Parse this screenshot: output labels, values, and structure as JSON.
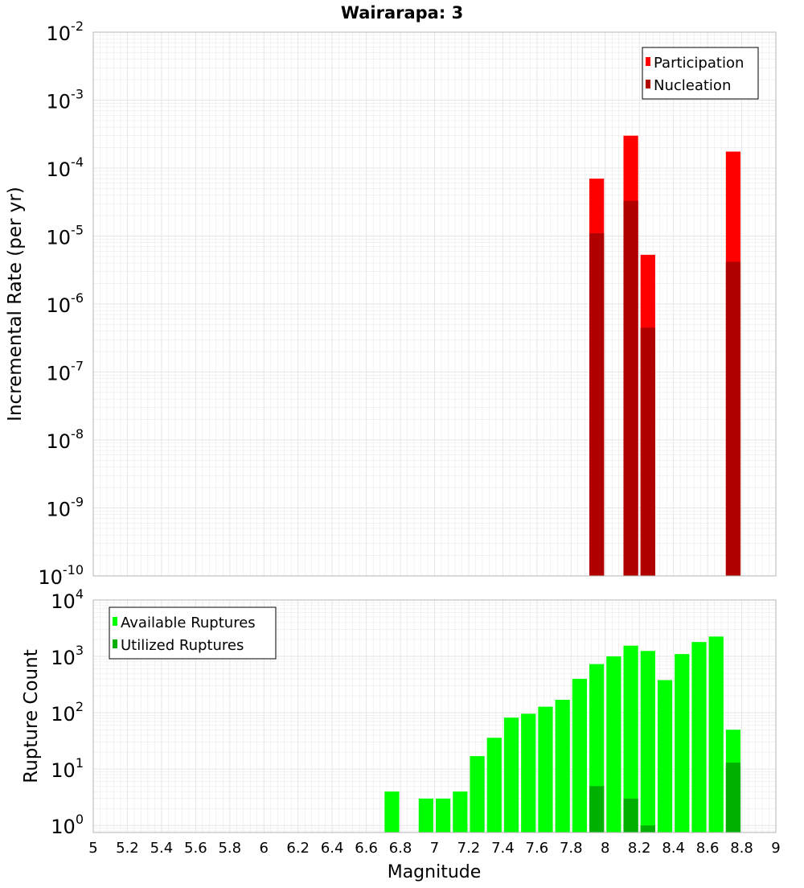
{
  "colors": {
    "participation": "#ff0000",
    "nucleation": "#b00000",
    "available": "#00ff00",
    "utilized": "#00b000",
    "grid": "#e6e6e6",
    "frame": "#b4b4b4"
  },
  "chart_data": [
    {
      "id": "rate",
      "type": "bar",
      "title": "Wairarapa: 3",
      "xlabel": "",
      "ylabel": "Incremental Rate (per yr)",
      "yscale": "log",
      "ylim": [
        1e-10,
        0.01
      ],
      "xlim": [
        5,
        9
      ],
      "grid": true,
      "legend_position": "top-right",
      "x": [
        7.95,
        8.15,
        8.25,
        8.75
      ],
      "bar_width": 0.1,
      "series": [
        {
          "name": "Participation",
          "color_key": "participation",
          "values": [
            7e-05,
            0.0003,
            5.3e-06,
            0.000175
          ]
        },
        {
          "name": "Nucleation",
          "color_key": "nucleation",
          "values": [
            1.1e-05,
            3.3e-05,
            4.5e-07,
            4.2e-06
          ]
        }
      ],
      "y_ticks": [
        {
          "base": "10",
          "exp": "-10"
        },
        {
          "base": "10",
          "exp": "-9"
        },
        {
          "base": "10",
          "exp": "-8"
        },
        {
          "base": "10",
          "exp": "-7"
        },
        {
          "base": "10",
          "exp": "-6"
        },
        {
          "base": "10",
          "exp": "-5"
        },
        {
          "base": "10",
          "exp": "-4"
        },
        {
          "base": "10",
          "exp": "-3"
        },
        {
          "base": "10",
          "exp": "-2"
        }
      ]
    },
    {
      "id": "count",
      "type": "bar",
      "title": "",
      "xlabel": "Magnitude",
      "ylabel": "Rupture Count",
      "yscale": "log",
      "ylim": [
        0.75,
        10000
      ],
      "xlim": [
        5,
        9
      ],
      "grid": true,
      "legend_position": "top-left",
      "x": [
        6.75,
        6.95,
        7.05,
        7.15,
        7.25,
        7.35,
        7.45,
        7.55,
        7.65,
        7.75,
        7.85,
        7.95,
        8.05,
        8.15,
        8.25,
        8.35,
        8.45,
        8.55,
        8.65,
        8.75
      ],
      "bar_width": 0.1,
      "series": [
        {
          "name": "Available Ruptures",
          "color_key": "available",
          "values": [
            4,
            3,
            3,
            4,
            17,
            36,
            82,
            96,
            128,
            170,
            400,
            730,
            1000,
            1550,
            1250,
            380,
            1100,
            1800,
            2250,
            50
          ]
        },
        {
          "name": "Utilized Ruptures",
          "color_key": "utilized",
          "values": [
            0,
            0,
            0,
            0,
            0,
            0,
            0,
            0,
            0,
            0,
            0,
            5,
            0,
            3,
            1,
            0,
            0,
            0,
            0,
            13
          ]
        }
      ],
      "y_ticks": [
        {
          "base": "10",
          "exp": "0"
        },
        {
          "base": "10",
          "exp": "1"
        },
        {
          "base": "10",
          "exp": "2"
        },
        {
          "base": "10",
          "exp": "3"
        },
        {
          "base": "10",
          "exp": "4"
        }
      ],
      "x_ticks": [
        "5",
        "5.2",
        "5.4",
        "5.6",
        "5.8",
        "6",
        "6.2",
        "6.4",
        "6.6",
        "6.8",
        "7",
        "7.2",
        "7.4",
        "7.6",
        "7.8",
        "8",
        "8.2",
        "8.4",
        "8.6",
        "8.8",
        "9"
      ]
    }
  ]
}
